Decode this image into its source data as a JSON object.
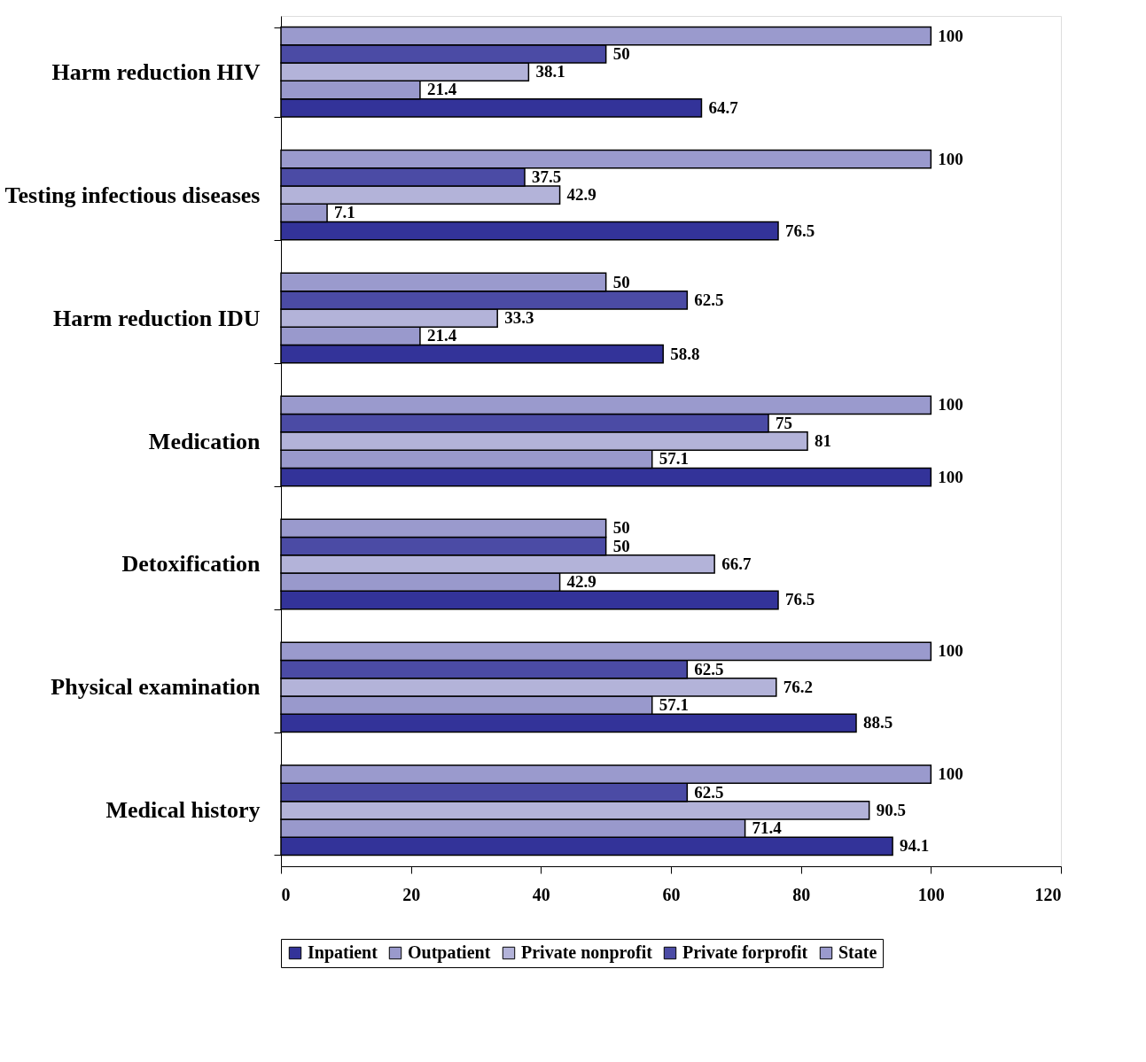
{
  "chart_data": {
    "type": "bar",
    "orientation": "horizontal",
    "categories": [
      "Harm reduction HIV",
      "Testing infectious diseases",
      "Harm reduction IDU",
      "Medication",
      "Detoxification",
      "Physical examination",
      "Medical history"
    ],
    "series": [
      {
        "name": "Inpatient",
        "color": "#333399",
        "values": [
          64.7,
          76.5,
          58.8,
          100,
          76.5,
          88.5,
          94.1
        ]
      },
      {
        "name": "Outpatient",
        "color": "#9999cc",
        "values": [
          21.4,
          7.1,
          21.4,
          57.1,
          42.9,
          57.1,
          71.4
        ]
      },
      {
        "name": "Private nonprofit",
        "color": "#b3b3d9",
        "values": [
          38.1,
          42.9,
          33.3,
          81,
          66.7,
          76.2,
          90.5
        ]
      },
      {
        "name": "Private forprofit",
        "color": "#4b4ba5",
        "values": [
          50,
          37.5,
          62.5,
          75,
          50,
          62.5,
          62.5
        ]
      },
      {
        "name": "State",
        "color": "#9a9acd",
        "values": [
          100,
          100,
          50,
          100,
          50,
          100,
          100
        ]
      }
    ],
    "xlim": [
      0,
      120
    ],
    "xticks": [
      0,
      20,
      40,
      60,
      80,
      100,
      120
    ],
    "data_labels": true,
    "grid": false,
    "legend": "bottom"
  }
}
